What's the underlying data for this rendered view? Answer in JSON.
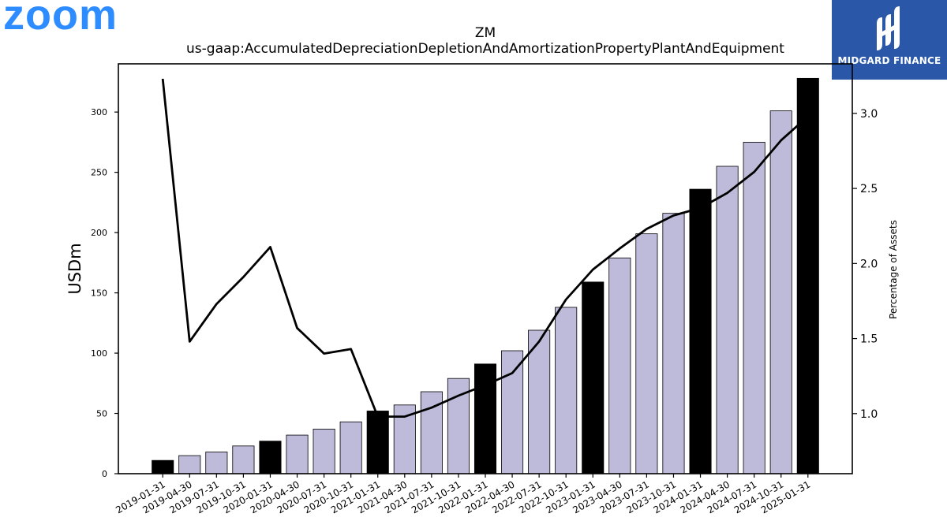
{
  "logos": {
    "left": {
      "text": "zoom",
      "color": "#2D8CFF"
    },
    "right": {
      "text": "MIDGARD FINANCE",
      "background": "#2B57A8",
      "text_color": "#FFFFFF"
    }
  },
  "chart_data": {
    "type": "bar+line",
    "title": "ZM",
    "subtitle": "us-gaap:AccumulatedDepreciationDepletionAndAmortizationPropertyPlantAndEquipment",
    "ylabel": "USDm",
    "y2label": "Percentage of Assets",
    "ylim": [
      0,
      340
    ],
    "y2lim": [
      0.6,
      3.33
    ],
    "yticks": [
      0,
      50,
      100,
      150,
      200,
      250,
      300
    ],
    "y2ticks": [
      1.0,
      1.5,
      2.0,
      2.5,
      3.0
    ],
    "y2tick_labels": [
      "1.0",
      "1.5",
      "2.0",
      "2.5",
      "3.0"
    ],
    "categories": [
      "2019-01-31",
      "2019-04-30",
      "2019-07-31",
      "2019-10-31",
      "2020-01-31",
      "2020-04-30",
      "2020-07-31",
      "2020-10-31",
      "2021-01-31",
      "2021-04-30",
      "2021-07-31",
      "2021-10-31",
      "2022-01-31",
      "2022-04-30",
      "2022-07-31",
      "2022-10-31",
      "2023-01-31",
      "2023-04-30",
      "2023-07-31",
      "2023-10-31",
      "2024-01-31",
      "2024-04-30",
      "2024-07-31",
      "2024-10-31",
      "2025-01-31"
    ],
    "bars": {
      "values": [
        11,
        15,
        18,
        23,
        27,
        32,
        37,
        43,
        52,
        57,
        68,
        79,
        91,
        102,
        119,
        138,
        159,
        179,
        199,
        216,
        236,
        255,
        275,
        301,
        328
      ],
      "fiscal_year_end": [
        true,
        false,
        false,
        false,
        true,
        false,
        false,
        false,
        true,
        false,
        false,
        false,
        true,
        false,
        false,
        false,
        true,
        false,
        false,
        false,
        true,
        false,
        false,
        false,
        true
      ],
      "color_fy": "#000000",
      "color_quarter": "#BEBBDA"
    },
    "line": {
      "values": [
        3.23,
        1.48,
        1.73,
        1.91,
        2.11,
        1.57,
        1.4,
        1.43,
        0.98,
        0.98,
        1.04,
        1.12,
        1.19,
        1.27,
        1.48,
        1.76,
        1.96,
        2.1,
        2.23,
        2.32,
        2.37,
        2.47,
        2.61,
        2.82,
        2.98
      ],
      "color": "#000000"
    }
  }
}
